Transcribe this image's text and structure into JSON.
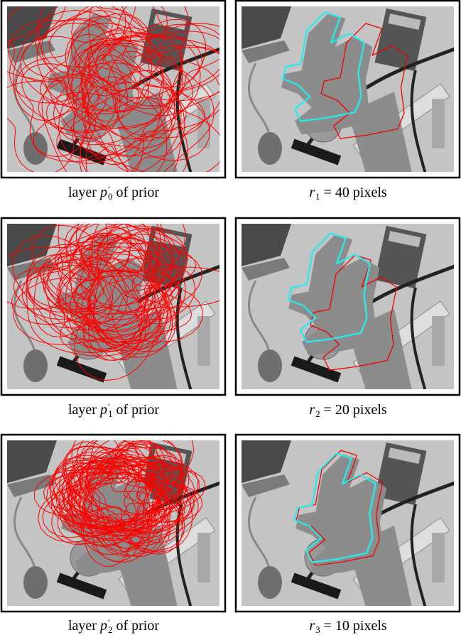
{
  "panels": [
    {
      "caption": {
        "before": "layer ",
        "var": "p",
        "prime": "′",
        "sub": "0",
        "after": " of prior"
      }
    },
    {
      "caption": {
        "var": "r",
        "sub": "1",
        "after": " = 40 pixels"
      }
    },
    {
      "caption": {
        "before": "layer ",
        "var": "p",
        "prime": "′",
        "sub": "1",
        "after": " of prior"
      }
    },
    {
      "caption": {
        "var": "r",
        "sub": "2",
        "after": " = 20 pixels"
      }
    },
    {
      "caption": {
        "before": "layer ",
        "var": "p",
        "prime": "′",
        "sub": "2",
        "after": " of prior"
      }
    },
    {
      "caption": {
        "var": "r",
        "sub": "3",
        "after": " = 10 pixels"
      }
    }
  ]
}
